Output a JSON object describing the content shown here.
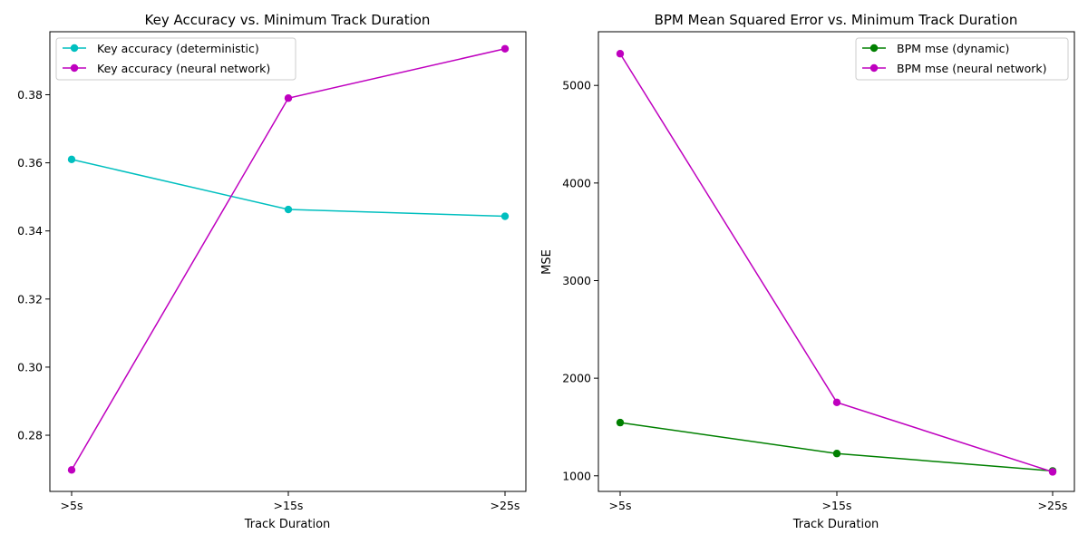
{
  "chart_data": [
    {
      "type": "line",
      "title": "Key Accuracy vs. Minimum Track Duration",
      "xlabel": "Track Duration",
      "ylabel": "",
      "categories": [
        ">5s",
        ">15s",
        ">25s"
      ],
      "ylim": [
        0.2635,
        0.3985
      ],
      "yticks": [
        "0.28",
        "0.30",
        "0.32",
        "0.34",
        "0.36",
        "0.38"
      ],
      "ytick_values": [
        0.28,
        0.3,
        0.32,
        0.34,
        0.36,
        0.38
      ],
      "grid": false,
      "legend_position": "top-left",
      "series": [
        {
          "name": "Key accuracy (deterministic)",
          "color": "#00bfbf",
          "marker": "circle",
          "values": [
            0.361,
            0.3463,
            0.3443
          ]
        },
        {
          "name": "Key accuracy (neural network)",
          "color": "#bf00bf",
          "marker": "circle",
          "values": [
            0.2698,
            0.379,
            0.3935
          ]
        }
      ]
    },
    {
      "type": "line",
      "title": "BPM Mean Squared Error vs. Minimum Track Duration",
      "xlabel": "Track Duration",
      "ylabel": "MSE",
      "categories": [
        ">5s",
        ">15s",
        ">25s"
      ],
      "ylim": [
        840,
        5550
      ],
      "yticks": [
        "1000",
        "2000",
        "3000",
        "4000",
        "5000"
      ],
      "ytick_values": [
        1000,
        2000,
        3000,
        4000,
        5000
      ],
      "grid": false,
      "legend_position": "top-right",
      "series": [
        {
          "name": "BPM mse (dynamic)",
          "color": "#008000",
          "marker": "circle",
          "values": [
            1545,
            1228,
            1050
          ]
        },
        {
          "name": "BPM mse (neural network)",
          "color": "#bf00bf",
          "marker": "circle",
          "values": [
            5325,
            1752,
            1040
          ]
        }
      ]
    }
  ]
}
